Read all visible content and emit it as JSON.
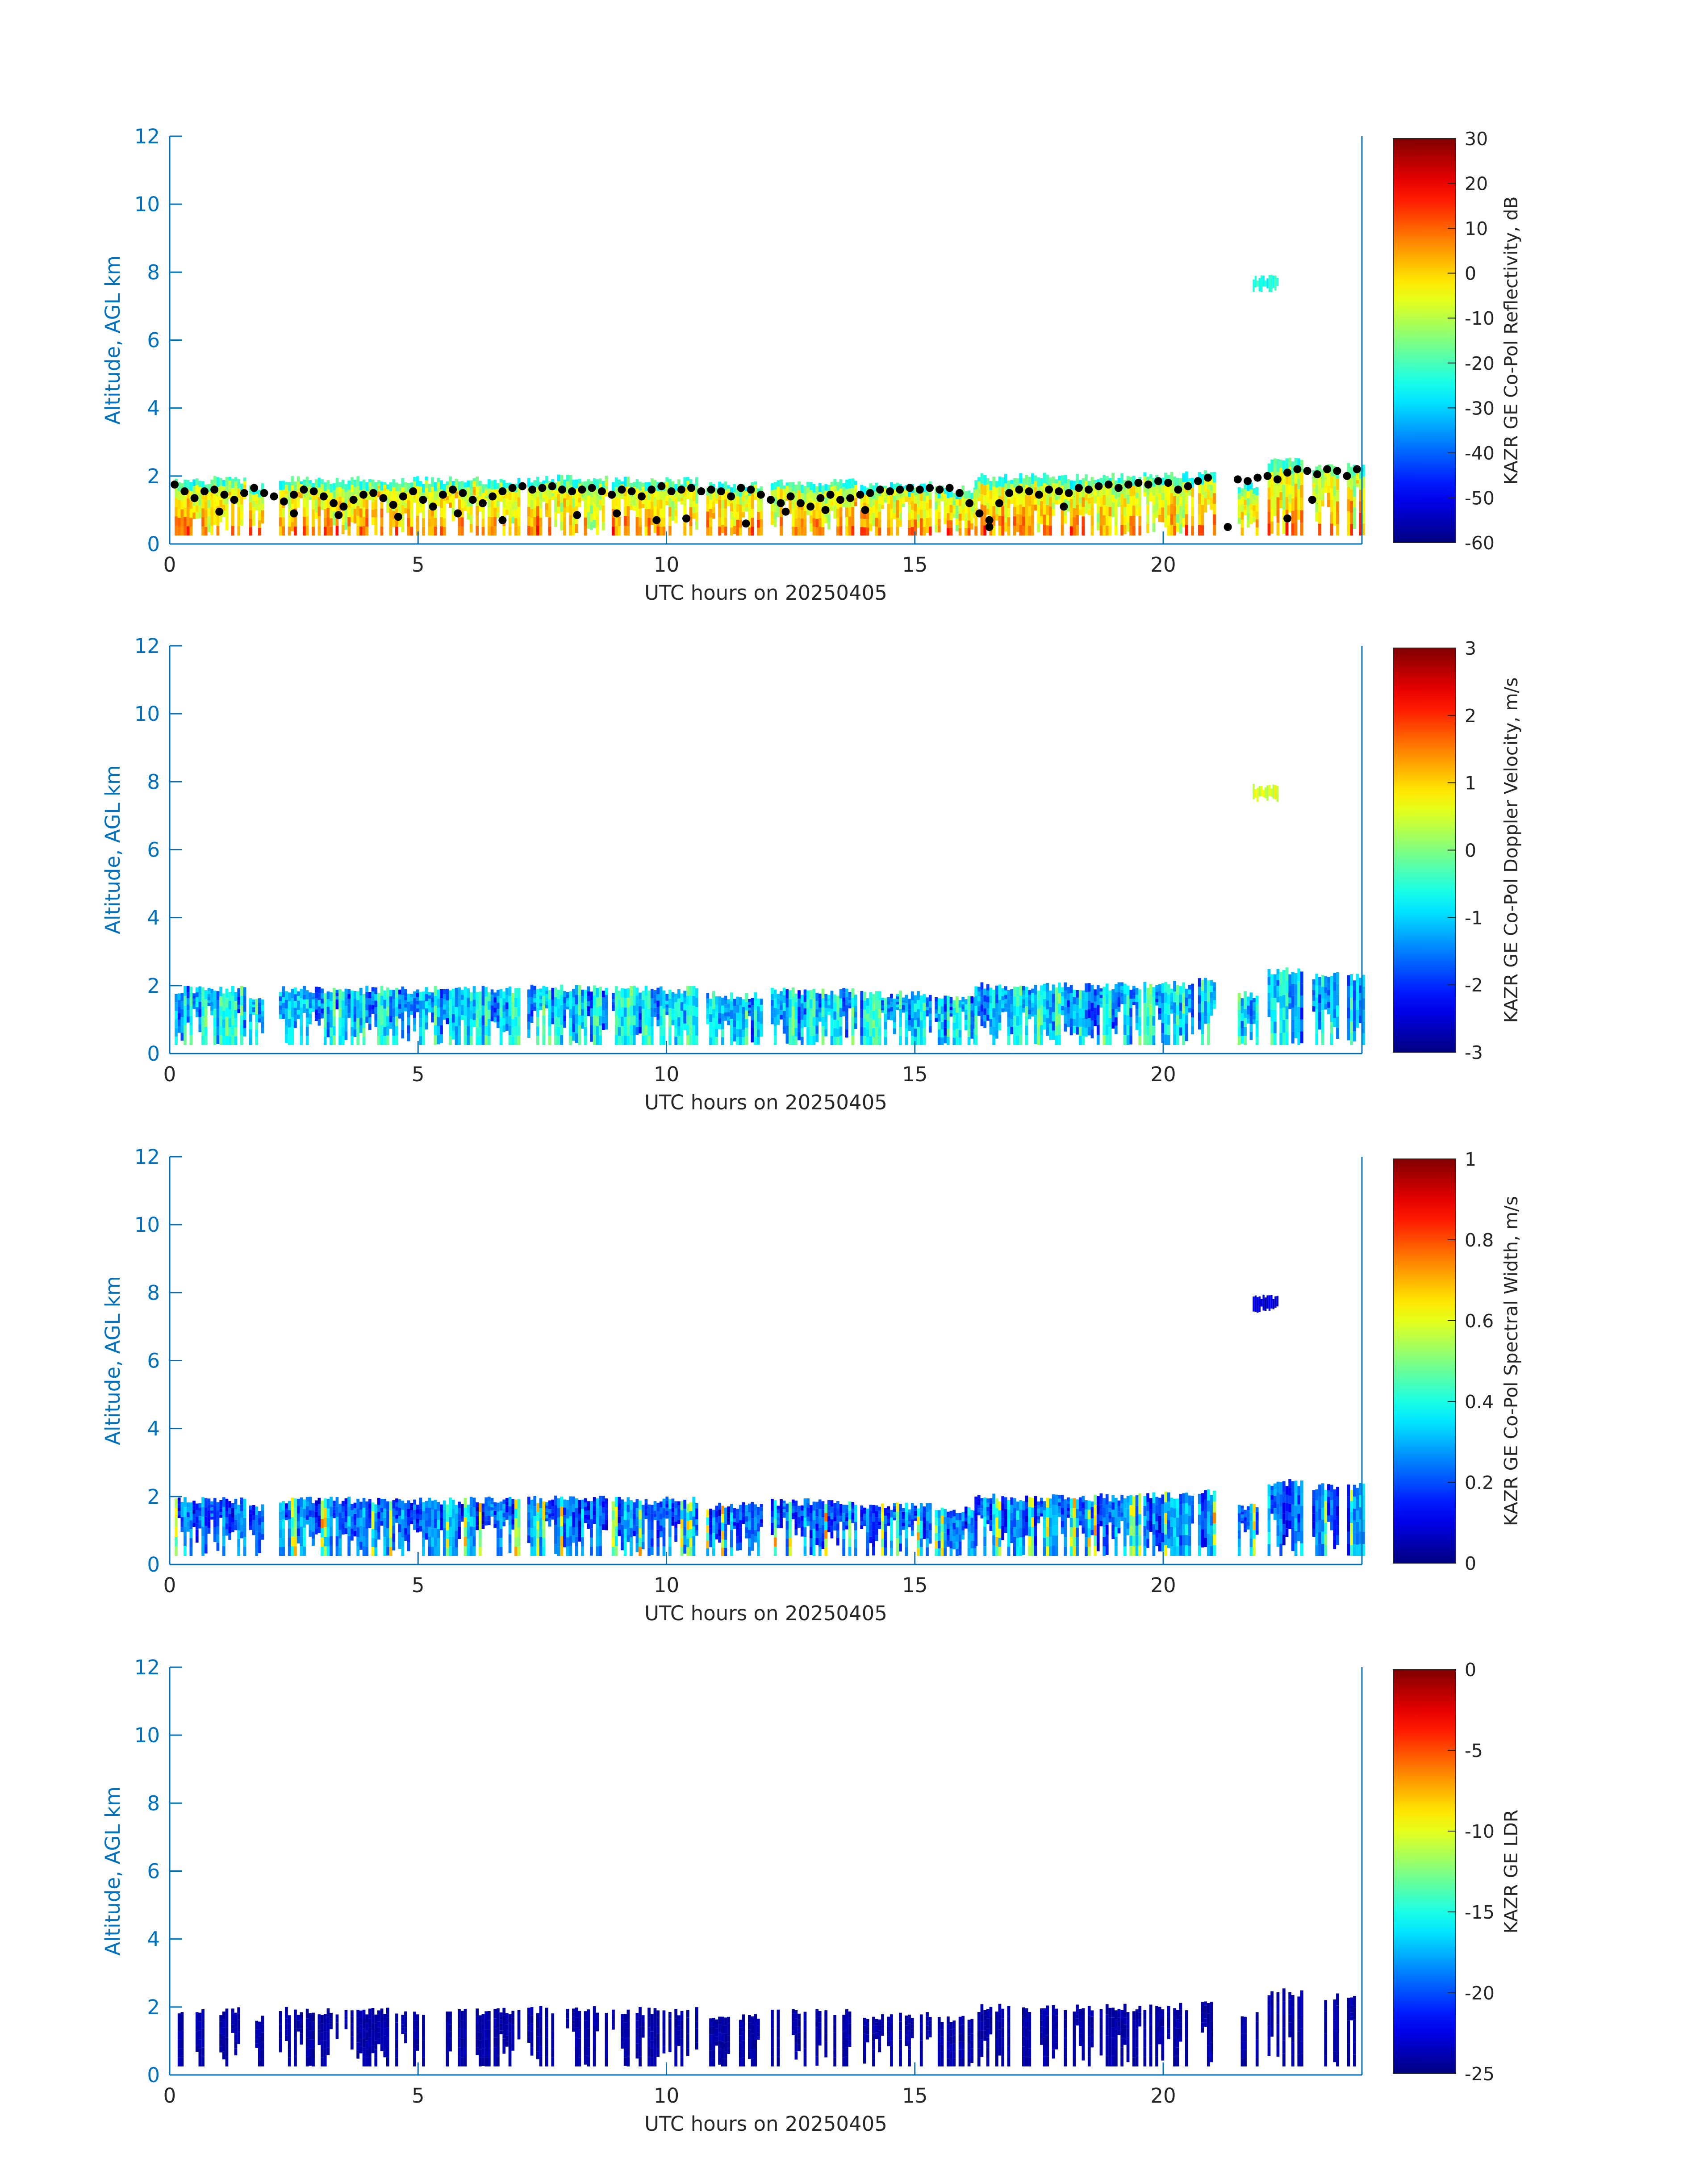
{
  "figure": {
    "tick_color": "#0072BD",
    "cbar_line_color": "#262626",
    "text_color": "#262626",
    "missing_color": "#ffffff"
  },
  "colormap": "jet",
  "chart_data": [
    {
      "type": "heatmap",
      "title": "",
      "xlabel": "UTC hours on 20250405",
      "ylabel": "Altitude, AGL km",
      "xlim": [
        0,
        24
      ],
      "ylim": [
        0,
        12
      ],
      "xticks": [
        0,
        5,
        10,
        15,
        20
      ],
      "yticks": [
        0,
        2,
        4,
        6,
        8,
        10,
        12
      ],
      "colorbar": {
        "label": "KAZR GE Co-Pol Reflectivity, dB",
        "range": [
          -60,
          30
        ],
        "ticks": [
          -60,
          -50,
          -40,
          -30,
          -20,
          -10,
          0,
          10,
          20,
          30
        ]
      },
      "field": "reflectivity",
      "overlay": {
        "type": "scatter",
        "name": "cloud base",
        "color": "#000000",
        "points": [
          [
            0.1,
            1.75
          ],
          [
            0.3,
            1.55
          ],
          [
            0.5,
            1.35
          ],
          [
            0.7,
            1.55
          ],
          [
            0.9,
            1.6
          ],
          [
            1.1,
            1.45
          ],
          [
            1.3,
            1.3
          ],
          [
            1.5,
            1.5
          ],
          [
            1.7,
            1.65
          ],
          [
            1.9,
            1.5
          ],
          [
            2.1,
            1.4
          ],
          [
            2.3,
            1.25
          ],
          [
            2.5,
            1.45
          ],
          [
            2.7,
            1.6
          ],
          [
            2.9,
            1.55
          ],
          [
            3.1,
            1.4
          ],
          [
            3.3,
            1.2
          ],
          [
            3.5,
            1.1
          ],
          [
            3.7,
            1.3
          ],
          [
            3.9,
            1.45
          ],
          [
            4.1,
            1.5
          ],
          [
            4.3,
            1.35
          ],
          [
            4.5,
            1.15
          ],
          [
            4.7,
            1.4
          ],
          [
            4.9,
            1.55
          ],
          [
            5.1,
            1.3
          ],
          [
            5.3,
            1.1
          ],
          [
            5.5,
            1.45
          ],
          [
            5.7,
            1.6
          ],
          [
            5.9,
            1.5
          ],
          [
            6.1,
            1.3
          ],
          [
            6.3,
            1.2
          ],
          [
            6.5,
            1.4
          ],
          [
            6.7,
            1.55
          ],
          [
            6.9,
            1.65
          ],
          [
            7.1,
            1.7
          ],
          [
            7.3,
            1.6
          ],
          [
            7.5,
            1.65
          ],
          [
            7.7,
            1.7
          ],
          [
            7.9,
            1.6
          ],
          [
            8.1,
            1.55
          ],
          [
            8.3,
            1.6
          ],
          [
            8.5,
            1.65
          ],
          [
            8.7,
            1.55
          ],
          [
            8.9,
            1.45
          ],
          [
            9.1,
            1.6
          ],
          [
            9.3,
            1.55
          ],
          [
            9.5,
            1.4
          ],
          [
            9.7,
            1.6
          ],
          [
            9.9,
            1.7
          ],
          [
            10.1,
            1.55
          ],
          [
            10.3,
            1.6
          ],
          [
            10.5,
            1.65
          ],
          [
            10.7,
            1.55
          ],
          [
            10.9,
            1.6
          ],
          [
            11.1,
            1.55
          ],
          [
            11.3,
            1.4
          ],
          [
            11.5,
            1.65
          ],
          [
            11.7,
            1.6
          ],
          [
            11.9,
            1.45
          ],
          [
            12.1,
            1.3
          ],
          [
            12.3,
            1.2
          ],
          [
            12.5,
            1.4
          ],
          [
            12.7,
            1.2
          ],
          [
            12.9,
            1.1
          ],
          [
            13.1,
            1.35
          ],
          [
            13.3,
            1.45
          ],
          [
            13.5,
            1.3
          ],
          [
            13.7,
            1.35
          ],
          [
            13.9,
            1.45
          ],
          [
            14.1,
            1.5
          ],
          [
            14.3,
            1.6
          ],
          [
            14.5,
            1.55
          ],
          [
            14.7,
            1.6
          ],
          [
            14.9,
            1.65
          ],
          [
            15.1,
            1.6
          ],
          [
            15.3,
            1.65
          ],
          [
            15.5,
            1.6
          ],
          [
            15.7,
            1.65
          ],
          [
            15.9,
            1.5
          ],
          [
            16.1,
            1.2
          ],
          [
            16.3,
            0.9
          ],
          [
            16.5,
            0.7
          ],
          [
            16.7,
            1.2
          ],
          [
            16.9,
            1.5
          ],
          [
            17.1,
            1.6
          ],
          [
            17.3,
            1.55
          ],
          [
            17.5,
            1.45
          ],
          [
            17.7,
            1.6
          ],
          [
            17.9,
            1.55
          ],
          [
            18.1,
            1.5
          ],
          [
            18.3,
            1.65
          ],
          [
            18.5,
            1.6
          ],
          [
            18.7,
            1.7
          ],
          [
            18.9,
            1.75
          ],
          [
            19.1,
            1.65
          ],
          [
            19.3,
            1.75
          ],
          [
            19.5,
            1.8
          ],
          [
            19.7,
            1.75
          ],
          [
            19.9,
            1.85
          ],
          [
            20.1,
            1.8
          ],
          [
            20.3,
            1.6
          ],
          [
            20.5,
            1.7
          ],
          [
            20.7,
            1.85
          ],
          [
            20.9,
            1.95
          ],
          [
            21.5,
            1.9
          ],
          [
            21.7,
            1.85
          ],
          [
            21.9,
            1.95
          ],
          [
            22.1,
            2.0
          ],
          [
            22.3,
            1.9
          ],
          [
            22.5,
            2.1
          ],
          [
            22.7,
            2.2
          ],
          [
            22.9,
            2.15
          ],
          [
            23.1,
            2.05
          ],
          [
            23.3,
            2.2
          ],
          [
            23.5,
            2.15
          ],
          [
            23.7,
            2.0
          ],
          [
            23.9,
            2.2
          ],
          [
            1.0,
            0.95
          ],
          [
            2.5,
            0.9
          ],
          [
            3.4,
            0.85
          ],
          [
            4.6,
            0.8
          ],
          [
            5.8,
            0.9
          ],
          [
            6.7,
            0.7
          ],
          [
            8.2,
            0.85
          ],
          [
            9.0,
            0.9
          ],
          [
            9.8,
            0.7
          ],
          [
            10.4,
            0.75
          ],
          [
            11.6,
            0.6
          ],
          [
            12.4,
            0.95
          ],
          [
            13.2,
            1.0
          ],
          [
            14.0,
            1.0
          ],
          [
            16.5,
            0.5
          ],
          [
            18.0,
            1.1
          ],
          [
            21.3,
            0.5
          ],
          [
            22.5,
            0.75
          ],
          [
            23.0,
            1.3
          ]
        ]
      }
    },
    {
      "type": "heatmap",
      "title": "",
      "xlabel": "UTC hours on 20250405",
      "ylabel": "Altitude, AGL km",
      "xlim": [
        0,
        24
      ],
      "ylim": [
        0,
        12
      ],
      "xticks": [
        0,
        5,
        10,
        15,
        20
      ],
      "yticks": [
        0,
        2,
        4,
        6,
        8,
        10,
        12
      ],
      "colorbar": {
        "label": "KAZR GE Co-Pol Doppler Velocity, m/s",
        "range": [
          -3,
          3
        ],
        "ticks": [
          -3,
          -2,
          -1,
          0,
          1,
          2,
          3
        ]
      },
      "field": "velocity"
    },
    {
      "type": "heatmap",
      "title": "",
      "xlabel": "UTC hours on 20250405",
      "ylabel": "Altitude, AGL km",
      "xlim": [
        0,
        24
      ],
      "ylim": [
        0,
        12
      ],
      "xticks": [
        0,
        5,
        10,
        15,
        20
      ],
      "yticks": [
        0,
        2,
        4,
        6,
        8,
        10,
        12
      ],
      "colorbar": {
        "label": "KAZR GE Co-Pol Spectral Width, m/s",
        "range": [
          0,
          1
        ],
        "ticks": [
          0,
          0.2,
          0.4,
          0.6,
          0.8,
          1
        ]
      },
      "field": "width"
    },
    {
      "type": "heatmap",
      "title": "",
      "xlabel": "UTC hours on 20250405",
      "ylabel": "Altitude, AGL km",
      "xlim": [
        0,
        24
      ],
      "ylim": [
        0,
        12
      ],
      "xticks": [
        0,
        5,
        10,
        15,
        20
      ],
      "yticks": [
        0,
        2,
        4,
        6,
        8,
        10,
        12
      ],
      "colorbar": {
        "label": "KAZR GE LDR",
        "range": [
          -25,
          0
        ],
        "ticks": [
          -25,
          -20,
          -15,
          -10,
          -5,
          0
        ]
      },
      "field": "ldr"
    }
  ],
  "echo": {
    "x_step_hours": 0.06,
    "base_km": 0.25,
    "cloud_segments": [
      {
        "start": 0.1,
        "end": 1.5,
        "top": 2.0
      },
      {
        "start": 1.6,
        "end": 1.9,
        "top": 1.8
      },
      {
        "start": 2.2,
        "end": 7.0,
        "top": 2.0
      },
      {
        "start": 7.2,
        "end": 8.8,
        "top": 2.05
      },
      {
        "start": 8.9,
        "end": 10.6,
        "top": 2.0
      },
      {
        "start": 10.8,
        "end": 11.9,
        "top": 1.85
      },
      {
        "start": 12.1,
        "end": 13.8,
        "top": 1.95
      },
      {
        "start": 13.9,
        "end": 15.3,
        "top": 1.85
      },
      {
        "start": 15.4,
        "end": 16.2,
        "top": 1.75
      },
      {
        "start": 16.2,
        "end": 19.5,
        "top": 2.1
      },
      {
        "start": 19.6,
        "end": 20.6,
        "top": 2.15
      },
      {
        "start": 20.7,
        "end": 21.0,
        "top": 2.25
      },
      {
        "start": 21.5,
        "end": 21.9,
        "top": 1.85
      },
      {
        "start": 22.1,
        "end": 22.8,
        "top": 2.55
      },
      {
        "start": 23.0,
        "end": 23.5,
        "top": 2.4
      },
      {
        "start": 23.7,
        "end": 24.0,
        "top": 2.4
      }
    ],
    "cirrus_patch": {
      "start": 21.8,
      "end": 22.3,
      "bottom": 7.4,
      "top": 7.95
    }
  }
}
